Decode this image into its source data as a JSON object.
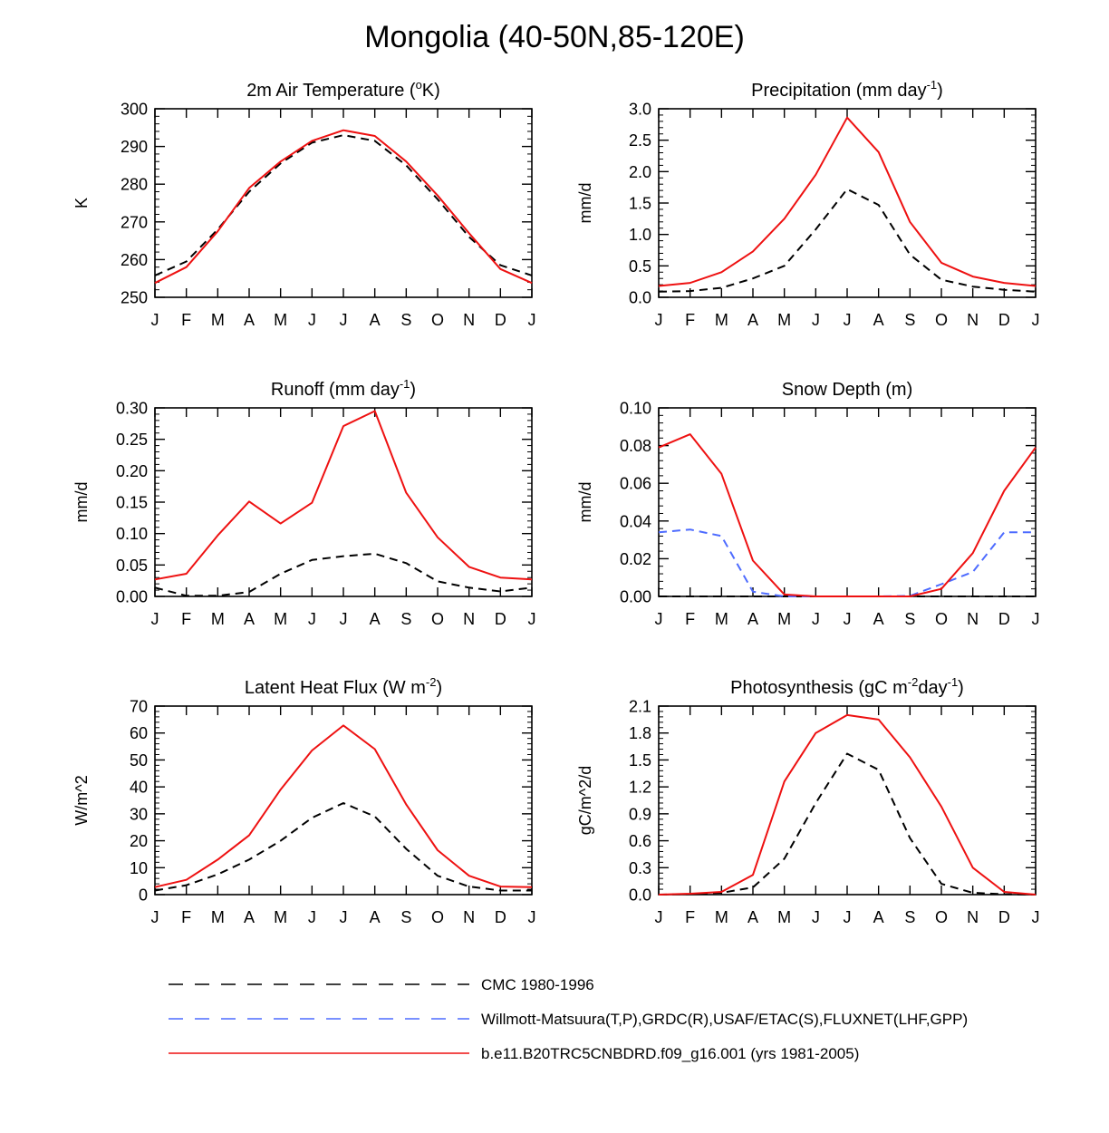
{
  "figure_title": "Mongolia (40-50N,85-120E)",
  "legend": [
    {
      "label": "CMC 1980-1996",
      "color": "#000000",
      "dash": "dashed"
    },
    {
      "label": "Willmott-Matsuura(T,P),GRDC(R),USAF/ETAC(S),FLUXNET(LHF,GPP)",
      "color": "#4d6bff",
      "dash": "dashed"
    },
    {
      "label": "b.e11.B20TRC5CNBDRD.f09_g16.001 (yrs 1981-2005)",
      "color": "#ee1111",
      "dash": "solid"
    }
  ],
  "chart_data": [
    {
      "type": "line",
      "title": "2m Air Temperature (",
      "title_sup": "o",
      "title_after": "K)",
      "ylabel": "K",
      "ylim": [
        250,
        300
      ],
      "yticks": [
        "250",
        "260",
        "270",
        "280",
        "290",
        "300"
      ],
      "categories": [
        "J",
        "F",
        "M",
        "A",
        "M",
        "J",
        "J",
        "A",
        "S",
        "O",
        "N",
        "D",
        "J"
      ],
      "series": [
        {
          "name": "CMC 1980-1996",
          "color": "#000000",
          "dash": "dashed",
          "values": [
            255.8,
            259.5,
            268.0,
            278.0,
            285.5,
            291.0,
            293.0,
            291.5,
            285.0,
            276.0,
            266.0,
            258.5,
            255.8
          ]
        },
        {
          "name": "b.e11.B20TRC5CNBDRD.f09_g16.001 (yrs 1981-2005)",
          "color": "#ee1111",
          "dash": "solid",
          "values": [
            253.8,
            258.0,
            267.5,
            279.0,
            286.0,
            291.5,
            294.3,
            292.8,
            286.0,
            277.0,
            267.0,
            257.5,
            253.8
          ]
        }
      ]
    },
    {
      "type": "line",
      "title": "Precipitation (mm day",
      "title_sup": "-1",
      "title_after": ")",
      "ylabel": "mm/d",
      "ylim": [
        0,
        3
      ],
      "yticks": [
        "0.0",
        "0.5",
        "1.0",
        "1.5",
        "2.0",
        "2.5",
        "3.0"
      ],
      "categories": [
        "J",
        "F",
        "M",
        "A",
        "M",
        "J",
        "J",
        "A",
        "S",
        "O",
        "N",
        "D",
        "J"
      ],
      "series": [
        {
          "name": "CMC 1980-1996",
          "color": "#000000",
          "dash": "dashed",
          "values": [
            0.09,
            0.1,
            0.15,
            0.3,
            0.5,
            1.08,
            1.72,
            1.47,
            0.68,
            0.28,
            0.17,
            0.12,
            0.09
          ]
        },
        {
          "name": "b.e11.B20TRC5CNBDRD.f09_g16.001 (yrs 1981-2005)",
          "color": "#ee1111",
          "dash": "solid",
          "values": [
            0.18,
            0.23,
            0.4,
            0.73,
            1.25,
            1.95,
            2.86,
            2.31,
            1.2,
            0.55,
            0.33,
            0.23,
            0.18
          ]
        }
      ]
    },
    {
      "type": "line",
      "title": "Runoff (mm day",
      "title_sup": "-1",
      "title_after": ")",
      "ylabel": "mm/d",
      "ylim": [
        0,
        0.3
      ],
      "yticks": [
        "0.00",
        "0.05",
        "0.10",
        "0.15",
        "0.20",
        "0.25",
        "0.30"
      ],
      "categories": [
        "J",
        "F",
        "M",
        "A",
        "M",
        "J",
        "J",
        "A",
        "S",
        "O",
        "N",
        "D",
        "J"
      ],
      "series": [
        {
          "name": "CMC 1980-1996",
          "color": "#000000",
          "dash": "dashed",
          "values": [
            0.014,
            0.001,
            0.001,
            0.007,
            0.036,
            0.058,
            0.064,
            0.068,
            0.053,
            0.024,
            0.014,
            0.008,
            0.014
          ]
        },
        {
          "name": "b.e11.B20TRC5CNBDRD.f09_g16.001 (yrs 1981-2005)",
          "color": "#ee1111",
          "dash": "solid",
          "values": [
            0.027,
            0.036,
            0.097,
            0.151,
            0.116,
            0.149,
            0.271,
            0.295,
            0.165,
            0.094,
            0.047,
            0.03,
            0.027
          ]
        }
      ]
    },
    {
      "type": "line",
      "title": "Snow Depth (m)",
      "title_sup": "",
      "title_after": "",
      "ylabel": "mm/d",
      "ylim": [
        0,
        0.1
      ],
      "yticks": [
        "0.00",
        "0.02",
        "0.04",
        "0.06",
        "0.08",
        "0.10"
      ],
      "categories": [
        "J",
        "F",
        "M",
        "A",
        "M",
        "J",
        "J",
        "A",
        "S",
        "O",
        "N",
        "D",
        "J"
      ],
      "series": [
        {
          "name": "CMC 1980-1996",
          "color": "#000000",
          "dash": "dashed",
          "values": [
            0,
            0,
            0,
            0,
            0,
            0,
            0,
            0,
            0,
            0,
            0,
            0,
            0
          ]
        },
        {
          "name": "Willmott-Matsuura(T,P),GRDC(R),USAF/ETAC(S),FLUXNET(LHF,GPP)",
          "color": "#4d6bff",
          "dash": "dashed",
          "values": [
            0.034,
            0.0355,
            0.032,
            0.0025,
            0.0,
            0.0,
            0.0,
            0.0,
            0.0003,
            0.0065,
            0.013,
            0.034,
            0.034
          ]
        },
        {
          "name": "b.e11.B20TRC5CNBDRD.f09_g16.001 (yrs 1981-2005)",
          "color": "#ee1111",
          "dash": "solid",
          "values": [
            0.079,
            0.086,
            0.065,
            0.019,
            0.001,
            0.0,
            0.0,
            0.0,
            0.0,
            0.004,
            0.023,
            0.056,
            0.079
          ]
        }
      ]
    },
    {
      "type": "line",
      "title": "Latent Heat Flux (W m",
      "title_sup": "-2",
      "title_after": ")",
      "ylabel": "W/m^2",
      "ylim": [
        0,
        70
      ],
      "yticks": [
        "0",
        "10",
        "20",
        "30",
        "40",
        "50",
        "60",
        "70"
      ],
      "categories": [
        "J",
        "F",
        "M",
        "A",
        "M",
        "J",
        "J",
        "A",
        "S",
        "O",
        "N",
        "D",
        "J"
      ],
      "series": [
        {
          "name": "CMC 1980-1996",
          "color": "#000000",
          "dash": "dashed",
          "values": [
            1.5,
            3.5,
            7.5,
            13.0,
            20.0,
            28.5,
            34.0,
            29.0,
            17.0,
            7.0,
            3.0,
            1.5,
            1.5
          ]
        },
        {
          "name": "b.e11.B20TRC5CNBDRD.f09_g16.001 (yrs 1981-2005)",
          "color": "#ee1111",
          "dash": "solid",
          "values": [
            2.8,
            5.5,
            13.0,
            22.0,
            39.0,
            53.5,
            62.8,
            54.0,
            33.5,
            16.5,
            7.0,
            3.0,
            2.8
          ]
        }
      ]
    },
    {
      "type": "line",
      "title": "Photosynthesis (gC m",
      "title_sup": "-2",
      "title_after": "day",
      "title_sup2": "-1",
      "title_after2": ")",
      "ylabel": "gC/m^2/d",
      "ylim": [
        0,
        2.1
      ],
      "yticks": [
        "0.0",
        "0.3",
        "0.6",
        "0.9",
        "1.2",
        "1.5",
        "1.8",
        "2.1"
      ],
      "categories": [
        "J",
        "F",
        "M",
        "A",
        "M",
        "J",
        "J",
        "A",
        "S",
        "O",
        "N",
        "D",
        "J"
      ],
      "series": [
        {
          "name": "CMC 1980-1996",
          "color": "#000000",
          "dash": "dashed",
          "values": [
            0.0,
            0.005,
            0.02,
            0.08,
            0.4,
            1.02,
            1.57,
            1.39,
            0.63,
            0.12,
            0.02,
            0.005,
            0.0
          ]
        },
        {
          "name": "b.e11.B20TRC5CNBDRD.f09_g16.001 (yrs 1981-2005)",
          "color": "#ee1111",
          "dash": "solid",
          "values": [
            0.0,
            0.01,
            0.03,
            0.22,
            1.26,
            1.8,
            2.0,
            1.95,
            1.53,
            0.98,
            0.3,
            0.03,
            0.0
          ]
        }
      ]
    }
  ]
}
